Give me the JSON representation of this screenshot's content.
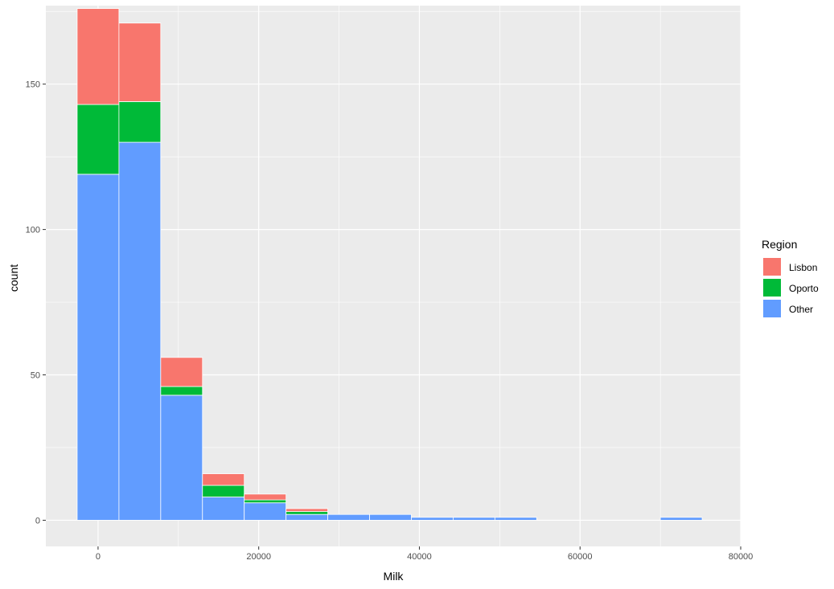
{
  "chart_data": {
    "type": "bar",
    "stacked": true,
    "xlabel": "Milk",
    "ylabel": "count",
    "xlim": [
      -6500,
      80000
    ],
    "ylim": [
      -9,
      177
    ],
    "x_ticks": [
      0,
      20000,
      40000,
      60000,
      80000
    ],
    "x_tick_labels": [
      "0",
      "20000",
      "40000",
      "60000",
      "80000"
    ],
    "y_ticks": [
      0,
      50,
      100,
      150
    ],
    "y_tick_labels": [
      "0",
      "50",
      "100",
      "150"
    ],
    "bins": [
      [
        -2600,
        2600
      ],
      [
        2600,
        7800
      ],
      [
        7800,
        13000
      ],
      [
        13000,
        18200
      ],
      [
        18200,
        23400
      ],
      [
        23400,
        28600
      ],
      [
        28600,
        33800
      ],
      [
        33800,
        39000
      ],
      [
        39000,
        44200
      ],
      [
        44200,
        49400
      ],
      [
        49400,
        54600
      ],
      [
        70000,
        75200
      ]
    ],
    "series": [
      {
        "name": "Other",
        "color": "#619CFF",
        "values": [
          119,
          130,
          43,
          8,
          6,
          2,
          2,
          2,
          1,
          1,
          1,
          1
        ]
      },
      {
        "name": "Oporto",
        "color": "#00BA38",
        "values": [
          24,
          14,
          3,
          4,
          1,
          1,
          0,
          0,
          0,
          0,
          0,
          0
        ]
      },
      {
        "name": "Lisbon",
        "color": "#F8766D",
        "values": [
          33,
          27,
          10,
          4,
          2,
          1,
          0,
          0,
          0,
          0,
          0,
          0
        ]
      }
    ],
    "legend": {
      "title": "Region",
      "position": "right",
      "items": [
        {
          "label": "Lisbon",
          "color": "#F8766D"
        },
        {
          "label": "Oporto",
          "color": "#00BA38"
        },
        {
          "label": "Other",
          "color": "#619CFF"
        }
      ]
    },
    "grid": true,
    "panel_background": "#EBEBEB",
    "grid_color": "#FFFFFF"
  }
}
